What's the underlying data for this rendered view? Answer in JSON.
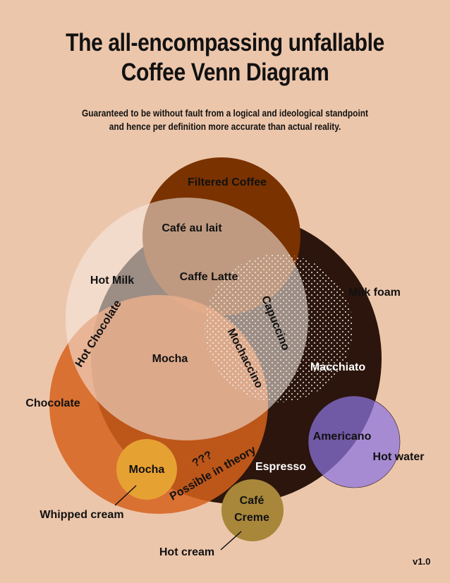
{
  "title_line1": "The all-encompassing unfallable",
  "title_line2": "Coffee Venn Diagram",
  "subtitle_line1": "Guaranteed to be without fault from a logical and ideological standpoint",
  "subtitle_line2": "and hence per definition more accurate than actual reality.",
  "version": "v1.0",
  "colors": {
    "background": "#ecc6ab",
    "filtered_coffee": "#7a3200",
    "espresso": "#2b150c",
    "milk": "#f6ebe4",
    "chocolate": "#d6621c",
    "hot_water": "#7862c8",
    "whipped_cream": "#e6a133",
    "hot_cream": "#a8873a"
  },
  "labels": {
    "filtered_coffee": "Filtered Coffee",
    "cafe_au_lait": "Café au lait",
    "hot_milk": "Hot Milk",
    "caffe_latte": "Caffe Latte",
    "milk_foam": "Milk foam",
    "capuccino": "Capuccino",
    "hot_chocolate": "Hot Chocolate",
    "mochaccino": "Mochaccino",
    "mocha_center": "Mocha",
    "macchiato": "Macchiato",
    "chocolate": "Chocolate",
    "americano": "Americano",
    "hot_water": "Hot water",
    "mocha_whipped": "Mocha",
    "question_marks": "???",
    "possible_in_theory": "Possible in theory",
    "espresso": "Espresso",
    "cafe_creme_line1": "Café",
    "cafe_creme_line2": "Creme",
    "whipped_cream": "Whipped cream",
    "hot_cream": "Hot cream"
  }
}
